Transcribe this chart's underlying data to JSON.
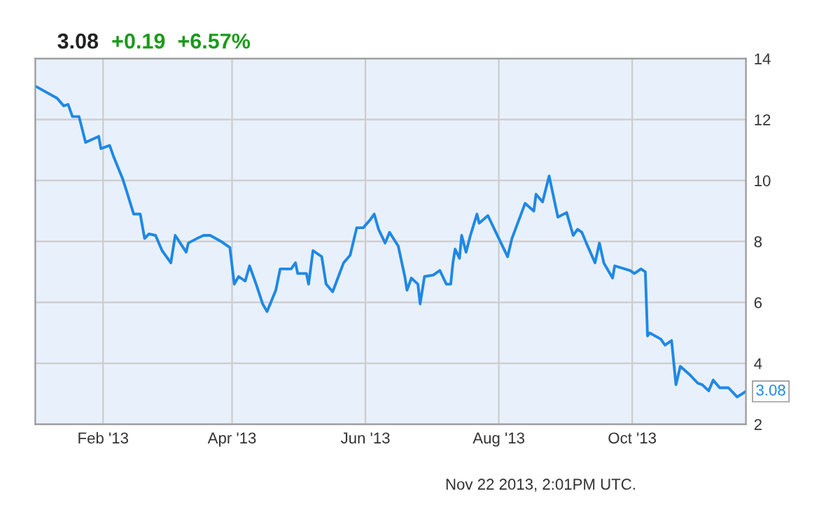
{
  "chart_data": {
    "type": "line",
    "title": "3.08",
    "subtitle": "+0.19  +6.57%",
    "x": [
      "2013-01-01",
      "2013-01-11",
      "2013-01-14",
      "2013-01-16",
      "2013-01-18",
      "2013-01-21",
      "2013-01-24",
      "2013-01-30",
      "2013-01-31",
      "2013-02-04",
      "2013-02-06",
      "2013-02-10",
      "2013-02-12",
      "2013-02-15",
      "2013-02-18",
      "2013-02-20",
      "2013-02-22",
      "2013-02-25",
      "2013-02-28",
      "2013-03-04",
      "2013-03-06",
      "2013-03-11",
      "2013-03-12",
      "2013-03-16",
      "2013-03-19",
      "2013-03-22",
      "2013-03-27",
      "2013-03-31",
      "2013-04-02",
      "2013-04-04",
      "2013-04-07",
      "2013-04-09",
      "2013-04-12",
      "2013-04-15",
      "2013-04-17",
      "2013-04-21",
      "2013-04-23",
      "2013-04-28",
      "2013-04-30",
      "2013-05-01",
      "2013-05-05",
      "2013-05-06",
      "2013-05-08",
      "2013-05-12",
      "2013-05-14",
      "2013-05-17",
      "2013-05-22",
      "2013-05-25",
      "2013-05-28",
      "2013-05-31",
      "2013-06-03",
      "2013-06-05",
      "2013-06-07",
      "2013-06-10",
      "2013-06-12",
      "2013-06-16",
      "2013-06-19",
      "2013-06-20",
      "2013-06-22",
      "2013-06-25",
      "2013-06-26",
      "2013-06-28",
      "2013-07-02",
      "2013-07-05",
      "2013-07-08",
      "2013-07-10",
      "2013-07-11",
      "2013-07-12",
      "2013-07-14",
      "2013-07-15",
      "2013-07-17",
      "2013-07-19",
      "2013-07-22",
      "2013-07-23",
      "2013-07-27",
      "2013-07-30",
      "2013-08-02",
      "2013-08-05",
      "2013-08-07",
      "2013-08-13",
      "2013-08-17",
      "2013-08-18",
      "2013-08-21",
      "2013-08-24",
      "2013-08-28",
      "2013-09-01",
      "2013-09-04",
      "2013-09-06",
      "2013-09-08",
      "2013-09-10",
      "2013-09-14",
      "2013-09-16",
      "2013-09-18",
      "2013-09-22",
      "2013-09-23",
      "2013-09-30",
      "2013-10-02",
      "2013-10-05",
      "2013-10-07",
      "2013-10-08",
      "2013-10-09",
      "2013-10-14",
      "2013-10-16",
      "2013-10-19",
      "2013-10-21",
      "2013-10-23",
      "2013-10-27",
      "2013-10-31",
      "2013-11-02",
      "2013-11-05",
      "2013-11-07",
      "2013-11-10",
      "2013-11-14",
      "2013-11-18",
      "2013-11-22"
    ],
    "series": [
      {
        "color": "#1e88e5",
        "values": [
          13.1,
          12.7,
          12.45,
          12.5,
          12.1,
          12.1,
          11.25,
          11.45,
          11.05,
          11.15,
          10.75,
          10.05,
          9.6,
          8.9,
          8.9,
          8.1,
          8.25,
          8.2,
          7.7,
          7.3,
          8.2,
          7.65,
          7.95,
          8.1,
          8.2,
          8.2,
          8.0,
          7.8,
          6.6,
          6.85,
          6.7,
          7.2,
          6.6,
          5.95,
          5.7,
          6.4,
          7.1,
          7.1,
          7.3,
          6.95,
          6.95,
          6.6,
          7.7,
          7.5,
          6.6,
          6.35,
          7.3,
          7.55,
          8.45,
          8.45,
          8.7,
          8.9,
          8.4,
          7.95,
          8.3,
          7.85,
          6.85,
          6.4,
          6.8,
          6.6,
          5.95,
          6.85,
          6.9,
          7.05,
          6.6,
          6.6,
          7.3,
          7.75,
          7.45,
          8.2,
          7.65,
          8.2,
          8.9,
          8.6,
          8.85,
          8.4,
          7.95,
          7.5,
          8.1,
          9.25,
          9.0,
          9.55,
          9.3,
          10.15,
          8.8,
          8.95,
          8.2,
          8.4,
          8.3,
          7.95,
          7.3,
          7.95,
          7.3,
          6.8,
          7.2,
          7.05,
          6.95,
          7.1,
          7.0,
          4.9,
          5.0,
          4.8,
          4.6,
          4.75,
          3.3,
          3.9,
          3.65,
          3.35,
          3.3,
          3.1,
          3.45,
          3.2,
          3.2,
          2.9,
          3.08
        ]
      }
    ],
    "xlim": [
      "2013-01-01",
      "2013-11-22"
    ],
    "xticks": [
      {
        "value": "2013-02-01",
        "label": "Feb '13"
      },
      {
        "value": "2013-04-01",
        "label": "Apr '13"
      },
      {
        "value": "2013-06-01",
        "label": "Jun '13"
      },
      {
        "value": "2013-08-01",
        "label": "Aug '13"
      },
      {
        "value": "2013-10-01",
        "label": "Oct '13"
      }
    ],
    "ylim": [
      2,
      14
    ],
    "yticks": [
      2,
      4,
      6,
      8,
      10,
      12,
      14
    ],
    "grid": true,
    "legend": false,
    "marker": "none",
    "line_style": "solid",
    "annotations": [
      {
        "text": "3.08",
        "x": "2013-11-22",
        "y": 3.08
      },
      "Nov 22 2013, 2:01PM UTC."
    ]
  }
}
